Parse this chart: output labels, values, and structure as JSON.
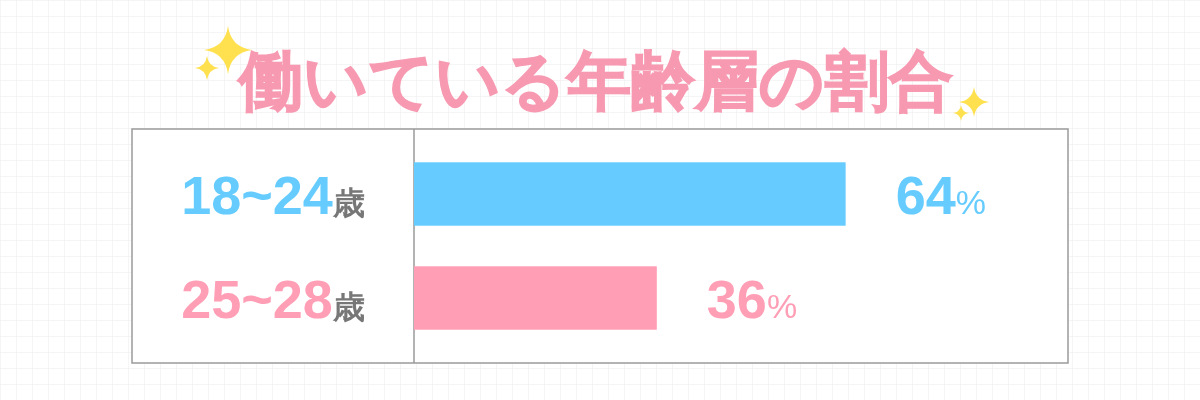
{
  "chart_data": {
    "type": "bar",
    "orientation": "horizontal",
    "title": "働いている年齢層の割合",
    "categories": [
      "18~24歳",
      "25~28歳"
    ],
    "values": [
      64,
      36
    ],
    "colors": [
      "#66ccff",
      "#ff9eb5"
    ],
    "value_labels": [
      "64%",
      "36%"
    ]
  }
}
